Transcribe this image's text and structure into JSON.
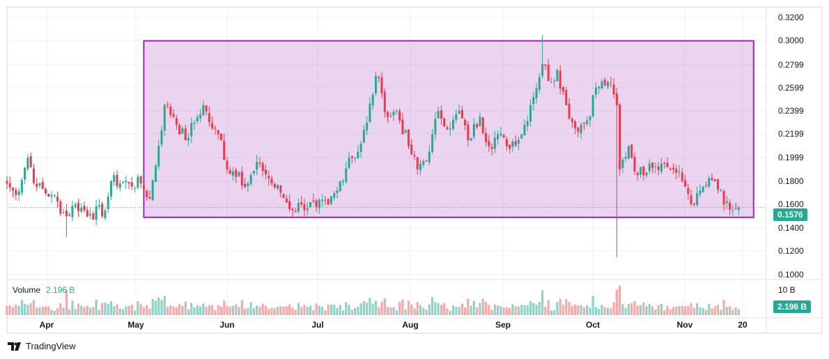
{
  "chart_data": {
    "type": "candlestick",
    "title": "",
    "price_axis": {
      "ticks": [
        "0.3200",
        "0.3000",
        "0.2799",
        "0.2599",
        "0.2399",
        "0.2199",
        "0.1999",
        "0.1800",
        "0.1600",
        "0.1400",
        "0.1200",
        "0.1000"
      ],
      "ylim": [
        0.1,
        0.32
      ]
    },
    "time_axis": {
      "ticks": [
        "Apr",
        "May",
        "Jun",
        "Jul",
        "Aug",
        "Sep",
        "Oct",
        "Nov",
        "20"
      ]
    },
    "last_price": "0.1576",
    "close_path": [
      [
        "03-19",
        0.178
      ],
      [
        "03-22",
        0.168
      ],
      [
        "03-26",
        0.2
      ],
      [
        "03-29",
        0.175
      ],
      [
        "04-03",
        0.168
      ],
      [
        "04-08",
        0.15
      ],
      [
        "04-11",
        0.16
      ],
      [
        "04-16",
        0.152
      ],
      [
        "04-21",
        0.155
      ],
      [
        "04-23",
        0.18
      ],
      [
        "04-29",
        0.178
      ],
      [
        "05-03",
        0.178
      ],
      [
        "05-06",
        0.165
      ],
      [
        "05-09",
        0.21
      ],
      [
        "05-11",
        0.245
      ],
      [
        "05-14",
        0.235
      ],
      [
        "05-18",
        0.215
      ],
      [
        "05-21",
        0.23
      ],
      [
        "05-24",
        0.245
      ],
      [
        "05-27",
        0.225
      ],
      [
        "05-30",
        0.215
      ],
      [
        "06-01",
        0.19
      ],
      [
        "06-05",
        0.188
      ],
      [
        "06-07",
        0.175
      ],
      [
        "06-12",
        0.195
      ],
      [
        "06-16",
        0.178
      ],
      [
        "06-19",
        0.17
      ],
      [
        "06-23",
        0.155
      ],
      [
        "06-26",
        0.16
      ],
      [
        "07-01",
        0.158
      ],
      [
        "07-05",
        0.16
      ],
      [
        "07-08",
        0.172
      ],
      [
        "07-12",
        0.2
      ],
      [
        "07-15",
        0.205
      ],
      [
        "07-18",
        0.23
      ],
      [
        "07-21",
        0.27
      ],
      [
        "07-23",
        0.255
      ],
      [
        "07-25",
        0.235
      ],
      [
        "07-28",
        0.24
      ],
      [
        "08-01",
        0.21
      ],
      [
        "08-04",
        0.19
      ],
      [
        "08-08",
        0.205
      ],
      [
        "08-11",
        0.24
      ],
      [
        "08-15",
        0.225
      ],
      [
        "08-18",
        0.24
      ],
      [
        "08-21",
        0.215
      ],
      [
        "08-25",
        0.235
      ],
      [
        "08-28",
        0.21
      ],
      [
        "08-31",
        0.22
      ],
      [
        "09-03",
        0.21
      ],
      [
        "09-08",
        0.22
      ],
      [
        "09-11",
        0.245
      ],
      [
        "09-15",
        0.28
      ],
      [
        "09-18",
        0.265
      ],
      [
        "09-20",
        0.275
      ],
      [
        "09-23",
        0.245
      ],
      [
        "09-26",
        0.225
      ],
      [
        "09-30",
        0.232
      ],
      [
        "10-03",
        0.26
      ],
      [
        "10-07",
        0.265
      ],
      [
        "10-10",
        0.245
      ],
      [
        "10-11",
        0.19
      ],
      [
        "10-14",
        0.21
      ],
      [
        "10-17",
        0.185
      ],
      [
        "10-21",
        0.195
      ],
      [
        "10-25",
        0.195
      ],
      [
        "10-29",
        0.19
      ],
      [
        "11-01",
        0.18
      ],
      [
        "11-05",
        0.16
      ],
      [
        "11-08",
        0.175
      ],
      [
        "11-12",
        0.18
      ],
      [
        "11-15",
        0.16
      ],
      [
        "11-18",
        0.155
      ],
      [
        "11-20",
        0.1576
      ]
    ],
    "notable_wicks": [
      [
        "10-10",
        0.115
      ],
      [
        "09-15",
        0.305
      ],
      [
        "04-08",
        0.132
      ]
    ],
    "range_box": {
      "top": 0.3,
      "bottom": 0.149,
      "from": "05-04",
      "to": "11-25",
      "color": "#9c27b0"
    },
    "volume": {
      "label": "Volume",
      "value": "2.196 B",
      "axis_tick": "10 B"
    },
    "colors": {
      "up": "#22ab94",
      "down": "#f23645",
      "vol_up": "#8fd3c8",
      "vol_down": "#f7a9a7"
    }
  },
  "branding": {
    "name": "TradingView"
  }
}
